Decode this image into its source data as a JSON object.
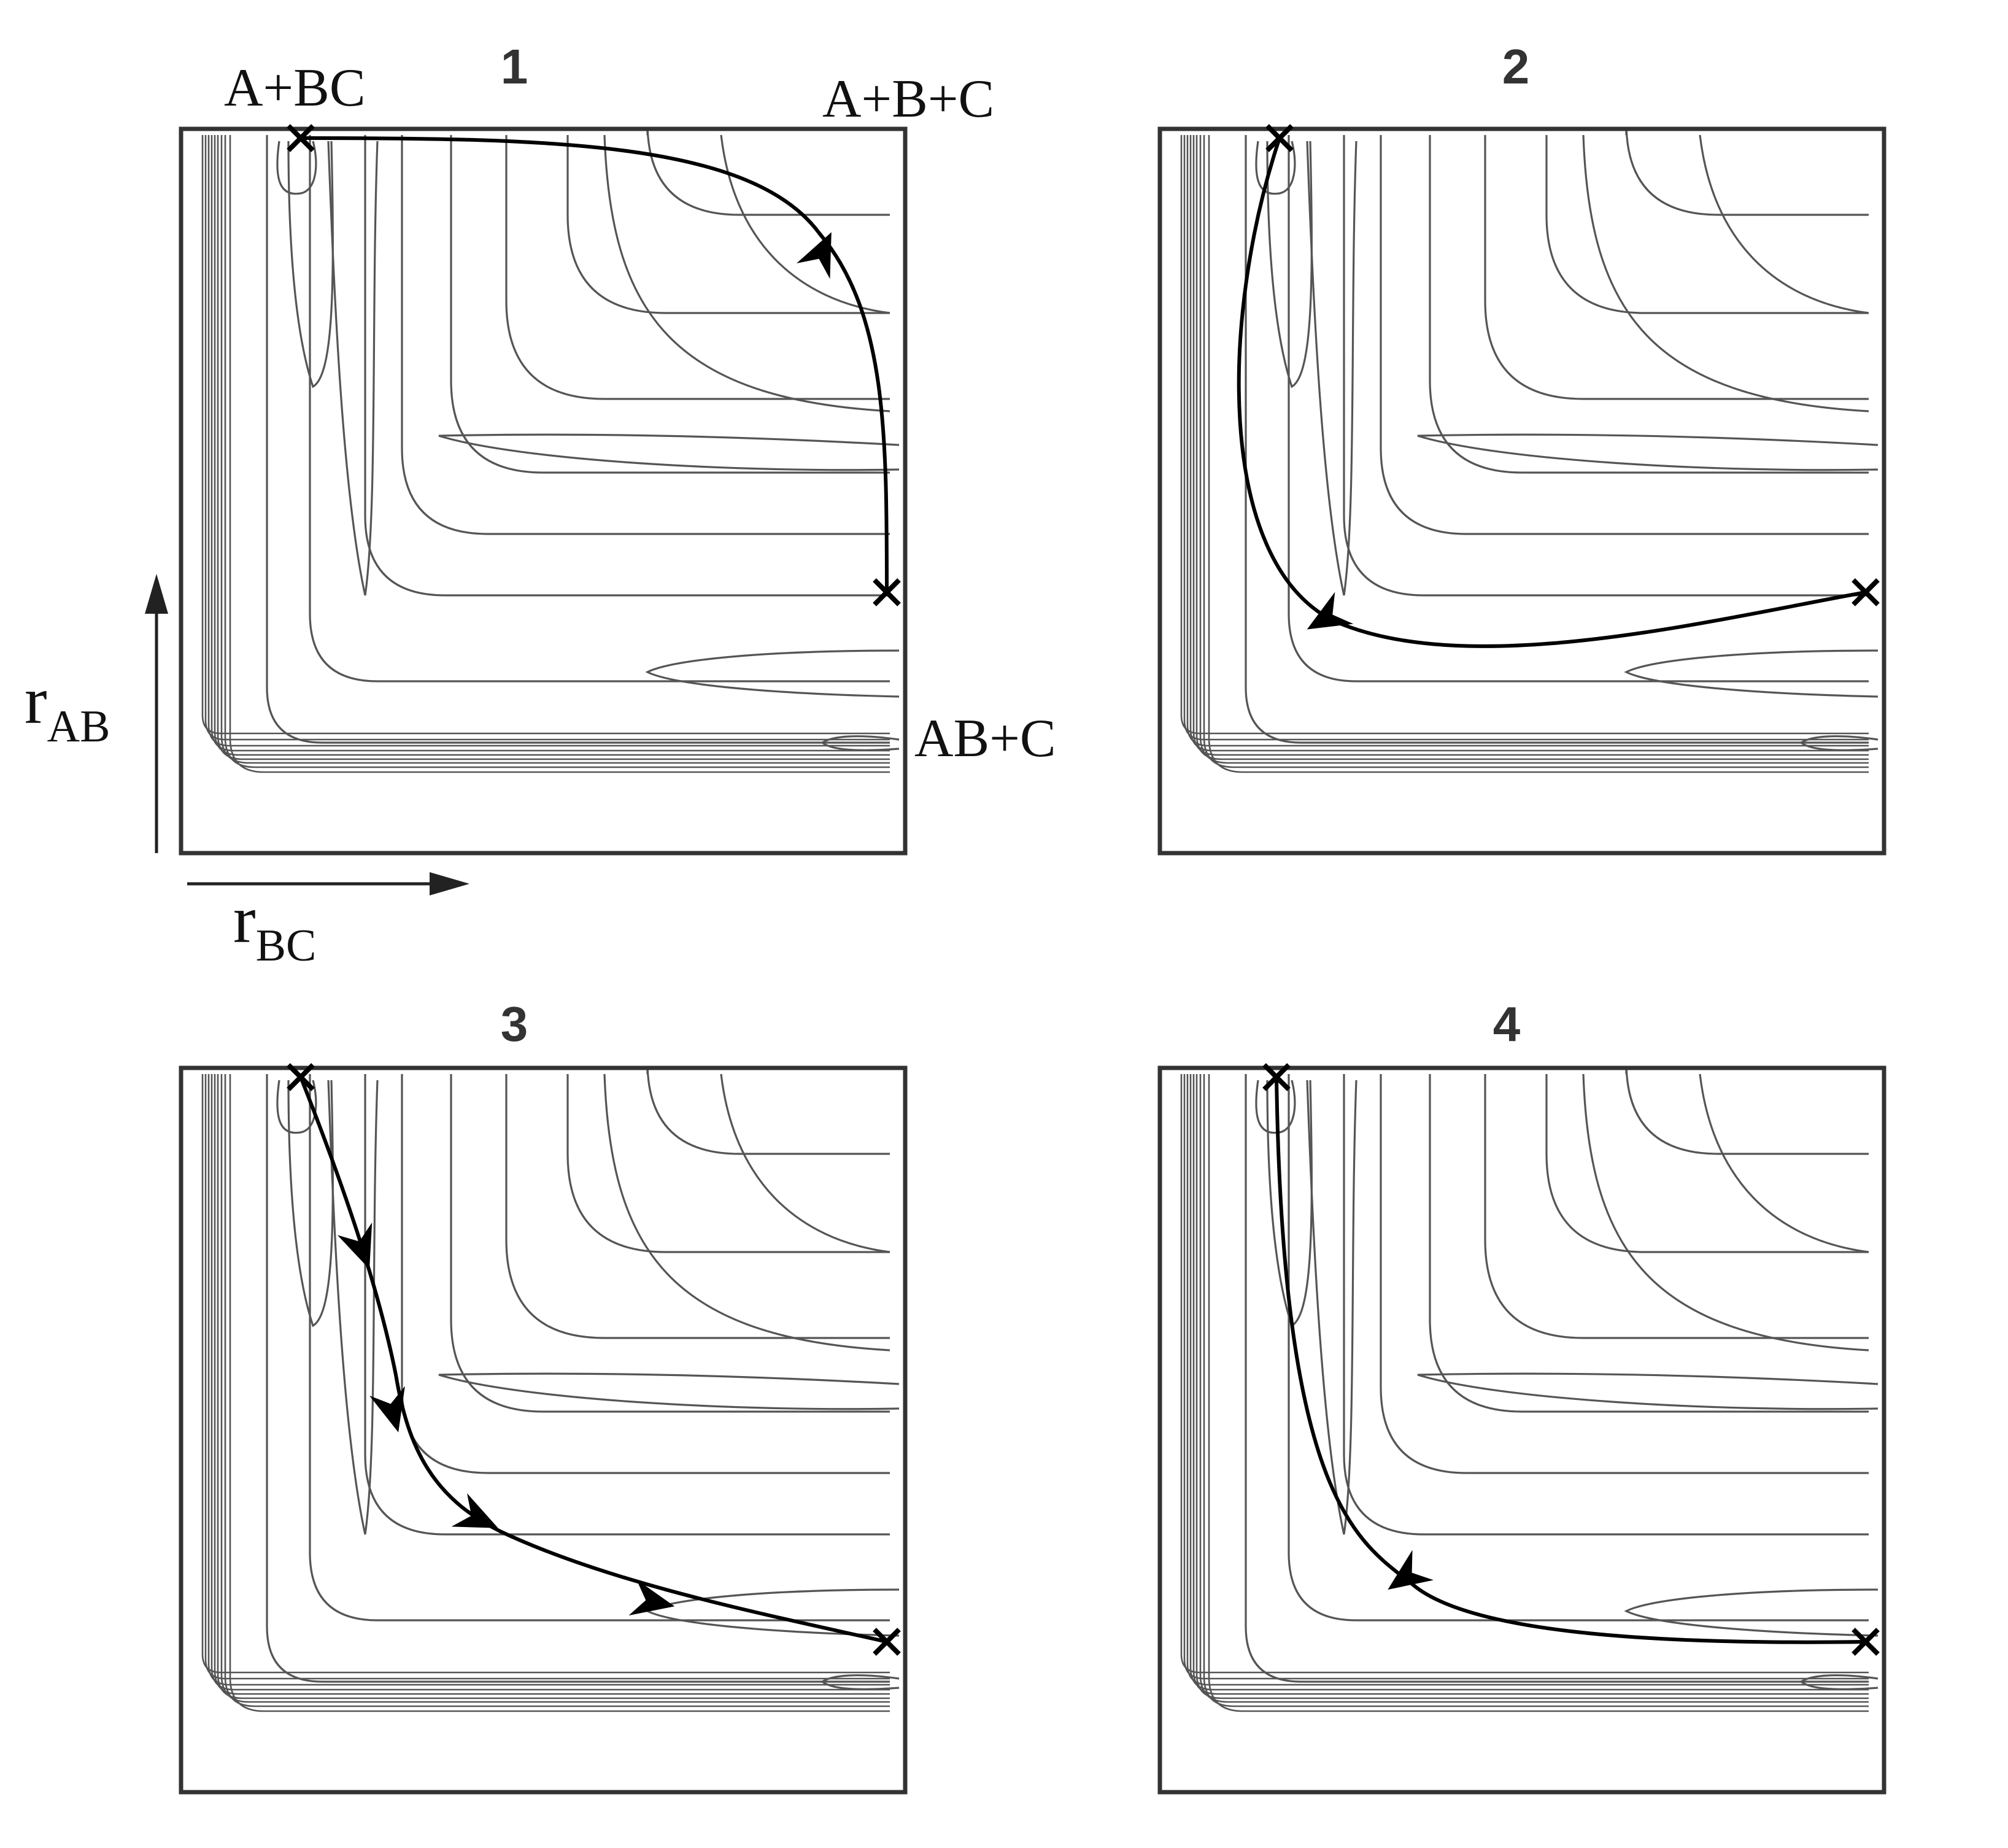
{
  "panels": [
    {
      "number": "1",
      "path": "rise"
    },
    {
      "number": "2",
      "path": "corner"
    },
    {
      "number": "3",
      "path": "diagonal"
    },
    {
      "number": "4",
      "path": "inner"
    }
  ],
  "labels": {
    "reactants": "A+BC",
    "dissociated": "A+B+C",
    "products": "AB+C"
  },
  "axes": {
    "y_main": "r",
    "y_sub": "AB",
    "x_main": "r",
    "x_sub": "BC"
  },
  "colors": {
    "contour": "#555555",
    "frame": "#333333",
    "path": "#000000"
  }
}
